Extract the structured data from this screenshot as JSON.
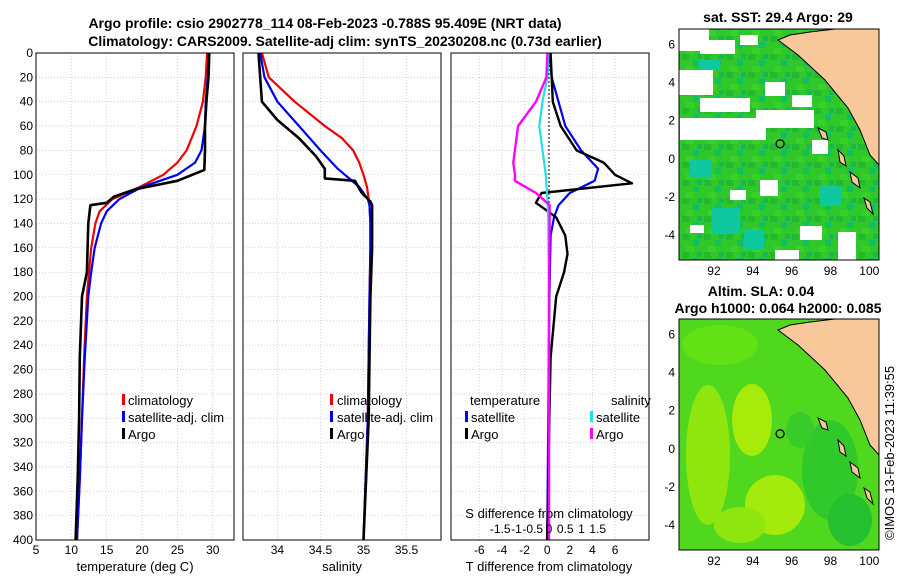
{
  "header": {
    "line1": "Argo profile: csio 2902778_114 08-Feb-2023 -0.788S 95.409E (NRT data)",
    "line2": "Climatology: CARS2009. Satellite-adj clim: synTS_20230208.nc (0.73d earlier)"
  },
  "footer": {
    "stamp": "©IMOS 13-Feb-2023 11:39:55"
  },
  "colors": {
    "climatology": "#ee0000",
    "satellite": "#0000ee",
    "argo": "#000000",
    "sat_salinity": "#22e0e8",
    "argo_salinity": "#ff00ff",
    "land": "#f8c89a",
    "grid": "#b8b8b8"
  },
  "chart_data": [
    {
      "type": "line",
      "id": "temperature",
      "xlabel": "temperature (deg C)",
      "ylabel": "",
      "xlim": [
        5,
        33
      ],
      "ylim": [
        0,
        400
      ],
      "x_ticks": [
        5,
        10,
        15,
        20,
        25,
        30
      ],
      "y_ticks": [
        0,
        20,
        40,
        60,
        80,
        100,
        120,
        140,
        160,
        180,
        200,
        220,
        240,
        260,
        280,
        300,
        320,
        340,
        360,
        380,
        400
      ],
      "legend": [
        "climatology",
        "satellite-adj. clim",
        "Argo"
      ],
      "series": [
        {
          "name": "climatology",
          "depth": [
            0,
            20,
            40,
            60,
            80,
            90,
            100,
            110,
            120,
            130,
            140,
            160,
            180,
            200,
            250,
            300,
            350,
            400
          ],
          "values": [
            29.2,
            29.0,
            28.6,
            27.7,
            26.3,
            25.0,
            23.0,
            19.7,
            15.8,
            14.0,
            13.4,
            12.8,
            12.5,
            12.2,
            11.8,
            11.5,
            11.2,
            10.8
          ]
        },
        {
          "name": "satellite-adj. clim",
          "depth": [
            0,
            20,
            40,
            60,
            80,
            90,
            100,
            110,
            120,
            130,
            140,
            160,
            180,
            200,
            250,
            300,
            350,
            400
          ],
          "values": [
            29.4,
            29.3,
            29.0,
            28.9,
            28.4,
            27.5,
            25.0,
            20.0,
            16.8,
            15.0,
            14.2,
            13.3,
            12.8,
            12.4,
            11.9,
            11.5,
            11.2,
            10.8
          ]
        },
        {
          "name": "Argo",
          "depth": [
            0,
            20,
            40,
            60,
            80,
            96,
            105,
            112,
            118,
            123,
            125,
            140,
            160,
            180,
            200,
            250,
            300,
            350,
            400
          ],
          "values": [
            29.5,
            29.4,
            29.1,
            28.9,
            28.9,
            28.8,
            25.0,
            19.0,
            16.0,
            15.0,
            12.7,
            12.4,
            12.3,
            12.2,
            11.5,
            11.2,
            11.1,
            10.9,
            10.6
          ]
        }
      ]
    },
    {
      "type": "line",
      "id": "salinity",
      "xlabel": "salinity",
      "ylabel": "",
      "xlim": [
        33.6,
        35.9
      ],
      "ylim": [
        0,
        400
      ],
      "x_ticks": [
        34,
        34.5,
        35,
        35.5
      ],
      "x_tick_labels": [
        "34",
        "34.5",
        "35",
        "35.5"
      ],
      "legend": [
        "climatology",
        "satellite-adj. clim",
        "Argo"
      ],
      "series": [
        {
          "name": "climatology",
          "depth": [
            0,
            20,
            40,
            60,
            70,
            80,
            90,
            100,
            110,
            120,
            125,
            140,
            160,
            200,
            300,
            400
          ],
          "values": [
            33.82,
            33.9,
            34.2,
            34.55,
            34.75,
            34.88,
            34.95,
            35.0,
            35.04,
            35.06,
            35.07,
            35.08,
            35.08,
            35.07,
            35.05,
            35.0
          ]
        },
        {
          "name": "satellite-adj. clim",
          "depth": [
            0,
            20,
            40,
            60,
            80,
            95,
            110,
            120,
            125,
            140,
            160,
            200,
            300,
            400
          ],
          "values": [
            33.8,
            33.85,
            34.0,
            34.25,
            34.5,
            34.7,
            34.95,
            35.05,
            35.07,
            35.08,
            35.08,
            35.07,
            35.05,
            35.0
          ]
        },
        {
          "name": "Argo",
          "depth": [
            0,
            20,
            40,
            55,
            70,
            85,
            95,
            103,
            105,
            115,
            122,
            125,
            140,
            160,
            200,
            250,
            300,
            400
          ],
          "values": [
            33.78,
            33.8,
            33.82,
            34.0,
            34.25,
            34.45,
            34.55,
            34.55,
            34.9,
            34.98,
            35.08,
            35.1,
            35.1,
            35.1,
            35.08,
            35.07,
            35.06,
            35.0
          ]
        }
      ]
    },
    {
      "type": "line",
      "id": "difference",
      "xlabel": "T difference from climatology",
      "top_label": "S difference from climatology",
      "xlim": [
        -8.5,
        9
      ],
      "ylim": [
        0,
        400
      ],
      "x_ticks": [
        -6,
        -4,
        -2,
        0,
        2,
        4,
        6
      ],
      "x_tick_labels": [
        "-6",
        "-4",
        "-2",
        "0",
        "2",
        "4",
        "6"
      ],
      "s_ticks": [
        -1.5,
        -1,
        -0.5,
        0,
        0.5,
        1,
        1.5
      ],
      "s_tick_labels": [
        "-1.5",
        "-1",
        "-0.5",
        "0",
        "0.5",
        "1",
        "1.5"
      ],
      "legend_titles": [
        "temperature",
        "salinity"
      ],
      "legend": [
        "satellite",
        "Argo",
        "satellite",
        "Argo"
      ],
      "series": [
        {
          "name": "T satellite",
          "depth": [
            0,
            20,
            40,
            60,
            80,
            95,
            105,
            115,
            125,
            135,
            150,
            200,
            300,
            400
          ],
          "values": [
            0.2,
            0.4,
            1.0,
            1.6,
            3.0,
            4.5,
            4.2,
            2.0,
            1.0,
            0.6,
            0.3,
            0.2,
            0.1,
            0.0
          ]
        },
        {
          "name": "T Argo",
          "depth": [
            0,
            20,
            40,
            60,
            80,
            90,
            100,
            107,
            115,
            123,
            125,
            135,
            150,
            165,
            180,
            200,
            250,
            300,
            350,
            400
          ],
          "values": [
            0.3,
            0.4,
            0.5,
            1.2,
            2.6,
            5.0,
            6.0,
            7.5,
            -0.5,
            -1.0,
            -0.7,
            0.8,
            1.6,
            1.8,
            1.5,
            0.8,
            0.3,
            0.2,
            0.1,
            0.0
          ]
        },
        {
          "name": "S satellite",
          "depth": [
            0,
            20,
            40,
            60,
            80,
            100,
            120,
            140,
            200,
            300,
            400
          ],
          "values": [
            -0.02,
            -0.05,
            -0.2,
            -0.3,
            -0.2,
            -0.1,
            -0.05,
            -0.02,
            0.0,
            0.0,
            0.0
          ]
        },
        {
          "name": "S Argo",
          "depth": [
            0,
            20,
            40,
            60,
            80,
            90,
            100,
            105,
            115,
            125,
            140,
            200,
            300,
            400
          ],
          "values": [
            -0.05,
            -0.08,
            -0.4,
            -0.95,
            -1.05,
            -1.1,
            -1.05,
            -1.05,
            -0.4,
            0.02,
            0.02,
            0.0,
            0.0,
            0.0
          ]
        }
      ]
    },
    {
      "type": "heatmap",
      "id": "sst-map",
      "title": "sat. SST: 29.4 Argo: 29",
      "xlim": [
        90.2,
        100.5
      ],
      "ylim": [
        -5.3,
        6.8
      ],
      "x_ticks": [
        92,
        94,
        96,
        98,
        100
      ],
      "y_ticks": [
        -4,
        -2,
        0,
        2,
        4,
        6
      ],
      "argo_position": [
        95.409,
        0.788
      ]
    },
    {
      "type": "heatmap",
      "id": "sla-map",
      "title": "Altim. SLA: 0.04",
      "subtitle": "Argo h1000: 0.064 h2000: 0.085",
      "xlim": [
        90.2,
        100.5
      ],
      "ylim": [
        -5.3,
        6.8
      ],
      "x_ticks": [
        92,
        94,
        96,
        98,
        100
      ],
      "y_ticks": [
        -4,
        -2,
        0,
        2,
        4,
        6
      ],
      "argo_position": [
        95.409,
        0.788
      ]
    }
  ]
}
